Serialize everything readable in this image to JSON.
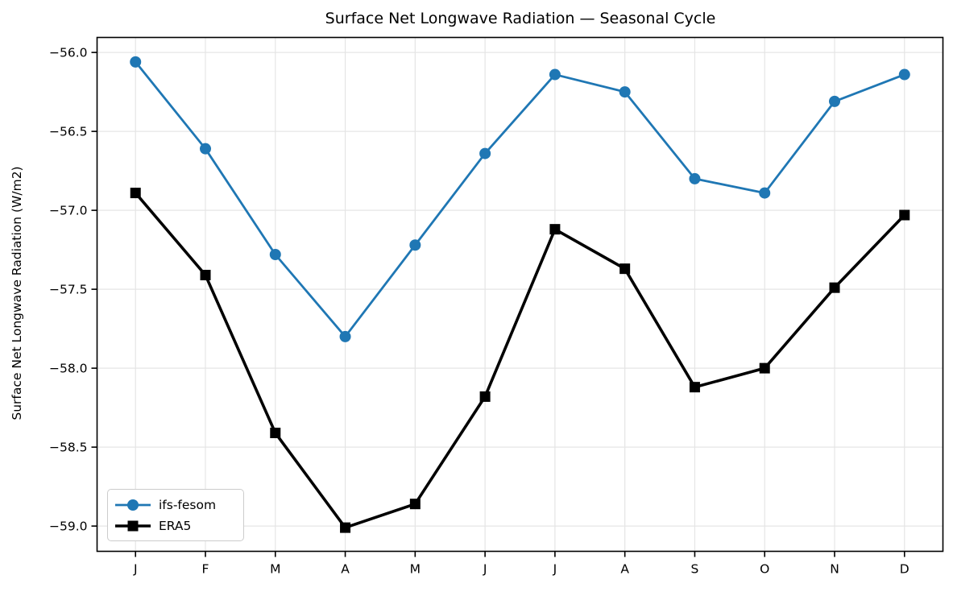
{
  "chart_data": {
    "type": "line",
    "title": "Surface Net Longwave Radiation — Seasonal Cycle",
    "xlabel": "",
    "ylabel": "Surface Net Longwave Radiation (W/m2)",
    "categories": [
      "J",
      "F",
      "M",
      "A",
      "M",
      "J",
      "J",
      "A",
      "S",
      "O",
      "N",
      "D"
    ],
    "series": [
      {
        "name": "ifs-fesom",
        "color": "#1f77b4",
        "marker": "circle",
        "line_width": 2.8,
        "marker_size": 14,
        "values": [
          -56.06,
          -56.61,
          -57.28,
          -57.8,
          -57.22,
          -56.64,
          -56.14,
          -56.25,
          -56.8,
          -56.89,
          -56.31,
          -56.14
        ]
      },
      {
        "name": "ERA5",
        "color": "#000000",
        "marker": "square",
        "line_width": 3.6,
        "marker_size": 13,
        "values": [
          -56.89,
          -57.41,
          -58.41,
          -59.01,
          -58.86,
          -58.18,
          -57.12,
          -57.37,
          -58.12,
          -58.0,
          -57.49,
          -57.03
        ]
      }
    ],
    "xlim": [
      -0.55,
      11.55
    ],
    "ylim": [
      -59.16,
      -55.905
    ],
    "yticks": [
      {
        "value": -56.0,
        "label": "−56.0"
      },
      {
        "value": -56.5,
        "label": "−56.5"
      },
      {
        "value": -57.0,
        "label": "−57.0"
      },
      {
        "value": -57.5,
        "label": "−57.5"
      },
      {
        "value": -58.0,
        "label": "−58.0"
      },
      {
        "value": -58.5,
        "label": "−58.5"
      },
      {
        "value": -59.0,
        "label": "−59.0"
      }
    ],
    "grid": true,
    "legend_position": "lower left",
    "colors": {
      "grid": "#e5e5e5",
      "spine": "#000000",
      "text": "#000000",
      "background": "#ffffff"
    }
  }
}
